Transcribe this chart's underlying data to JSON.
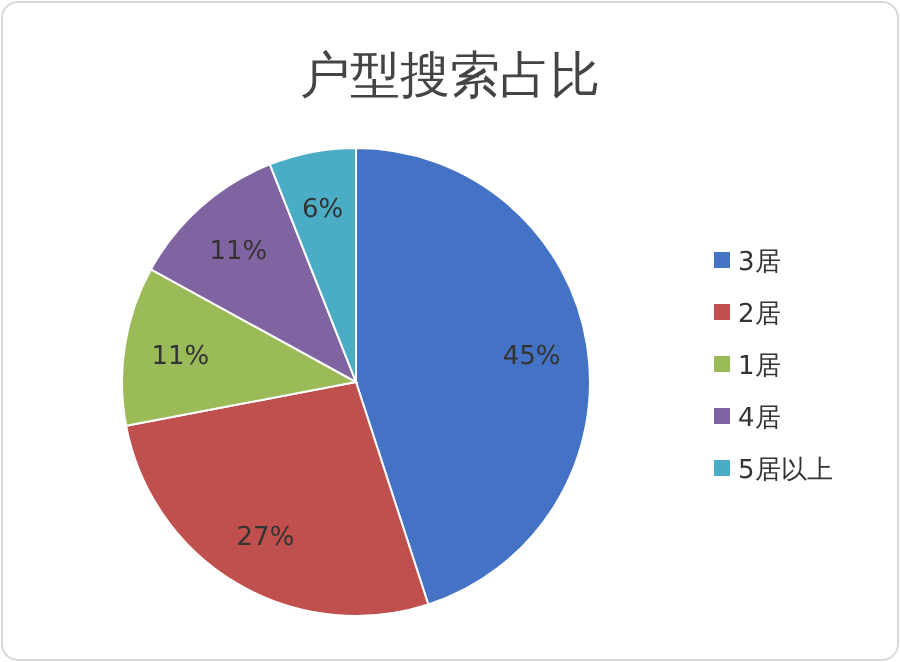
{
  "chart_data": {
    "type": "pie",
    "title": "户型搜索占比",
    "categories": [
      "3居",
      "2居",
      "1居",
      "4居",
      "5居以上"
    ],
    "values": [
      45,
      27,
      11,
      11,
      6
    ],
    "colors": [
      "#4472c4",
      "#c0504d",
      "#9bbb59",
      "#8064a2",
      "#4bacc6"
    ],
    "value_labels": [
      "45%",
      "27%",
      "11%",
      "11%",
      "6%"
    ],
    "legend": "right"
  }
}
